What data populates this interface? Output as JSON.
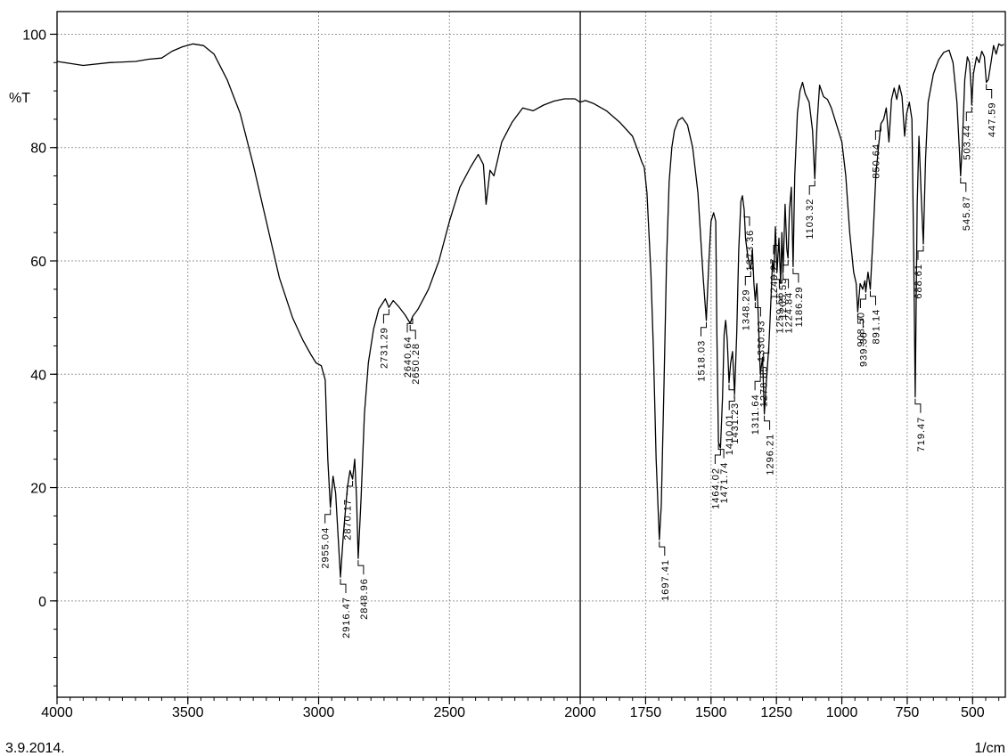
{
  "chart_data": {
    "type": "line",
    "title": "",
    "ylabel": "%T",
    "xlabel": "1/cm",
    "date": "3.9.2014.",
    "xlim": [
      4000,
      375
    ],
    "ylim": [
      -17,
      104
    ],
    "x_reversed": true,
    "grid": true,
    "divider_x": 2000,
    "x_ticks": [
      {
        "value": 4000,
        "label": "4000"
      },
      {
        "value": 3500,
        "label": "3500"
      },
      {
        "value": 3000,
        "label": "3000"
      },
      {
        "value": 2500,
        "label": "2500"
      },
      {
        "value": 2000,
        "label": "2000"
      },
      {
        "value": 1750,
        "label": "1750"
      },
      {
        "value": 1500,
        "label": "1500"
      },
      {
        "value": 1250,
        "label": "1250"
      },
      {
        "value": 1000,
        "label": "1000"
      },
      {
        "value": 750,
        "label": "750"
      },
      {
        "value": 500,
        "label": "500"
      }
    ],
    "y_ticks": [
      {
        "value": 100,
        "label": "100"
      },
      {
        "value": 80,
        "label": "80"
      },
      {
        "value": 60,
        "label": "60"
      },
      {
        "value": 40,
        "label": "40"
      },
      {
        "value": 20,
        "label": "20"
      },
      {
        "value": 0,
        "label": "0"
      }
    ],
    "series": [
      {
        "color": "#000000",
        "points": [
          [
            4000,
            95.2
          ],
          [
            3900,
            94.5
          ],
          [
            3800,
            95.0
          ],
          [
            3700,
            95.2
          ],
          [
            3650,
            95.6
          ],
          [
            3600,
            95.8
          ],
          [
            3560,
            97.0
          ],
          [
            3520,
            97.8
          ],
          [
            3480,
            98.3
          ],
          [
            3440,
            98.0
          ],
          [
            3400,
            96.5
          ],
          [
            3350,
            92
          ],
          [
            3300,
            86
          ],
          [
            3250,
            77
          ],
          [
            3200,
            67
          ],
          [
            3150,
            57
          ],
          [
            3100,
            50
          ],
          [
            3060,
            46
          ],
          [
            3030,
            43.5
          ],
          [
            3010,
            42
          ],
          [
            2990,
            41.5
          ],
          [
            2975,
            39
          ],
          [
            2965,
            25
          ],
          [
            2955.04,
            16.5
          ],
          [
            2945,
            22
          ],
          [
            2935,
            19
          ],
          [
            2916.47,
            4.2
          ],
          [
            2905,
            12
          ],
          [
            2890,
            20
          ],
          [
            2880,
            23
          ],
          [
            2870.17,
            21.5
          ],
          [
            2862,
            25
          ],
          [
            2855,
            18
          ],
          [
            2848.96,
            7.5
          ],
          [
            2838,
            18
          ],
          [
            2825,
            33
          ],
          [
            2810,
            42
          ],
          [
            2790,
            48
          ],
          [
            2770,
            51.5
          ],
          [
            2745,
            53.3
          ],
          [
            2731.29,
            51.8
          ],
          [
            2715,
            53
          ],
          [
            2695,
            52
          ],
          [
            2670,
            50.5
          ],
          [
            2650.28,
            49
          ],
          [
            2640.64,
            50.2
          ],
          [
            2620,
            51.5
          ],
          [
            2580,
            55
          ],
          [
            2540,
            60
          ],
          [
            2500,
            67
          ],
          [
            2460,
            73
          ],
          [
            2420,
            76.5
          ],
          [
            2390,
            78.8
          ],
          [
            2370,
            77
          ],
          [
            2360,
            70
          ],
          [
            2345,
            76
          ],
          [
            2330,
            75
          ],
          [
            2300,
            81
          ],
          [
            2260,
            84.5
          ],
          [
            2220,
            87
          ],
          [
            2180,
            86.5
          ],
          [
            2140,
            87.5
          ],
          [
            2100,
            88.2
          ],
          [
            2060,
            88.6
          ],
          [
            2020,
            88.6
          ],
          [
            2000,
            88
          ],
          [
            1980,
            88.3
          ],
          [
            1950,
            87.8
          ],
          [
            1900,
            86.5
          ],
          [
            1850,
            84.5
          ],
          [
            1800,
            82
          ],
          [
            1780,
            79.5
          ],
          [
            1765,
            77.5
          ],
          [
            1755,
            76.5
          ],
          [
            1745,
            72
          ],
          [
            1730,
            58
          ],
          [
            1720,
            44
          ],
          [
            1710,
            25
          ],
          [
            1697.41,
            10.8
          ],
          [
            1690,
            17
          ],
          [
            1680,
            38
          ],
          [
            1670,
            60
          ],
          [
            1660,
            74
          ],
          [
            1650,
            80
          ],
          [
            1640,
            83
          ],
          [
            1625,
            84.8
          ],
          [
            1610,
            85.3
          ],
          [
            1590,
            84
          ],
          [
            1570,
            80
          ],
          [
            1550,
            72
          ],
          [
            1530,
            57
          ],
          [
            1518.03,
            49.5
          ],
          [
            1508,
            60
          ],
          [
            1500,
            67
          ],
          [
            1490,
            68.5
          ],
          [
            1482,
            67
          ],
          [
            1478,
            48
          ],
          [
            1471.74,
            28
          ],
          [
            1464.02,
            27
          ],
          [
            1456,
            36
          ],
          [
            1450,
            47
          ],
          [
            1444,
            49.5
          ],
          [
            1438,
            46
          ],
          [
            1431.23,
            38.5
          ],
          [
            1425,
            42
          ],
          [
            1418,
            44
          ],
          [
            1410.01,
            36.5
          ],
          [
            1402,
            47
          ],
          [
            1394,
            62
          ],
          [
            1386,
            70.5
          ],
          [
            1380,
            71.5
          ],
          [
            1373.36,
            69
          ],
          [
            1368,
            64
          ],
          [
            1360,
            61
          ],
          [
            1352,
            59
          ],
          [
            1348.29,
            58.5
          ],
          [
            1342,
            62
          ],
          [
            1336,
            56
          ],
          [
            1330.93,
            53
          ],
          [
            1325,
            56
          ],
          [
            1320,
            51
          ],
          [
            1311.64,
            40
          ],
          [
            1303,
            43
          ],
          [
            1296.21,
            33
          ],
          [
            1288,
            39
          ],
          [
            1278.85,
            45
          ],
          [
            1272,
            52
          ],
          [
            1265,
            60
          ],
          [
            1259.56,
            58
          ],
          [
            1254,
            66
          ],
          [
            1248,
            58
          ],
          [
            1240.27,
            64
          ],
          [
            1234,
            56
          ],
          [
            1229,
            65
          ],
          [
            1224.84,
            58
          ],
          [
            1217,
            70
          ],
          [
            1210,
            62
          ],
          [
            1205.55,
            60.5
          ],
          [
            1200,
            69
          ],
          [
            1193,
            73
          ],
          [
            1186.29,
            59
          ],
          [
            1180,
            75
          ],
          [
            1170,
            86
          ],
          [
            1160,
            90
          ],
          [
            1150,
            91.5
          ],
          [
            1140,
            89.5
          ],
          [
            1125,
            88
          ],
          [
            1112,
            83
          ],
          [
            1103.32,
            74.5
          ],
          [
            1095,
            84
          ],
          [
            1085,
            91
          ],
          [
            1070,
            89
          ],
          [
            1055,
            88.5
          ],
          [
            1040,
            87
          ],
          [
            1020,
            84
          ],
          [
            1000,
            81
          ],
          [
            985,
            75
          ],
          [
            970,
            65
          ],
          [
            955,
            58
          ],
          [
            945,
            56
          ],
          [
            939.36,
            51
          ],
          [
            930,
            56
          ],
          [
            920,
            55
          ],
          [
            912,
            56.5
          ],
          [
            908.5,
            54.5
          ],
          [
            900,
            58
          ],
          [
            891.14,
            55
          ],
          [
            880,
            65
          ],
          [
            870,
            75
          ],
          [
            860,
            80
          ],
          [
            850.64,
            84.2
          ],
          [
            840,
            85
          ],
          [
            830,
            87
          ],
          [
            820,
            81
          ],
          [
            810,
            88.5
          ],
          [
            800,
            90.5
          ],
          [
            790,
            88.5
          ],
          [
            780,
            91
          ],
          [
            770,
            89
          ],
          [
            760,
            82
          ],
          [
            752,
            86
          ],
          [
            742,
            88
          ],
          [
            732,
            85
          ],
          [
            725,
            60
          ],
          [
            719.47,
            36
          ],
          [
            712,
            70
          ],
          [
            705,
            82
          ],
          [
            697,
            72
          ],
          [
            688.61,
            63
          ],
          [
            680,
            78
          ],
          [
            670,
            88
          ],
          [
            650,
            93
          ],
          [
            630,
            95.5
          ],
          [
            610,
            96.8
          ],
          [
            590,
            97.2
          ],
          [
            575,
            95
          ],
          [
            560,
            88
          ],
          [
            550,
            79
          ],
          [
            545.87,
            75
          ],
          [
            540,
            80
          ],
          [
            530,
            92
          ],
          [
            520,
            96
          ],
          [
            512,
            95
          ],
          [
            505,
            90
          ],
          [
            503.44,
            87.5
          ],
          [
            497,
            93
          ],
          [
            485,
            96
          ],
          [
            475,
            95
          ],
          [
            465,
            97
          ],
          [
            455,
            96
          ],
          [
            447.59,
            91.5
          ],
          [
            440,
            92
          ],
          [
            430,
            95
          ],
          [
            420,
            98
          ],
          [
            410,
            96.5
          ],
          [
            400,
            98.3
          ],
          [
            390,
            98
          ],
          [
            380,
            98.2
          ]
        ]
      }
    ],
    "annotations": [
      {
        "label": "2955.04",
        "x": 2955.04,
        "y": 16.5,
        "pos": "below"
      },
      {
        "label": "2916.47",
        "x": 2916.47,
        "y": 4.2,
        "pos": "below"
      },
      {
        "label": "2870.17",
        "x": 2870.17,
        "y": 21.5,
        "pos": "below"
      },
      {
        "label": "2848.96",
        "x": 2848.96,
        "y": 7.5,
        "pos": "below"
      },
      {
        "label": "2731.29",
        "x": 2731.29,
        "y": 51.8,
        "pos": "below"
      },
      {
        "label": "2650.28",
        "x": 2650.28,
        "y": 49,
        "pos": "below"
      },
      {
        "label": "2640.64",
        "x": 2640.64,
        "y": 50.2,
        "pos": "below"
      },
      {
        "label": "1697.41",
        "x": 1697.41,
        "y": 10.8,
        "pos": "below"
      },
      {
        "label": "1518.03",
        "x": 1518.03,
        "y": 49.5,
        "pos": "below"
      },
      {
        "label": "1471.74",
        "x": 1471.74,
        "y": 28,
        "pos": "below"
      },
      {
        "label": "1464.02",
        "x": 1464.02,
        "y": 27,
        "pos": "below"
      },
      {
        "label": "1431.23",
        "x": 1431.23,
        "y": 38.5,
        "pos": "below"
      },
      {
        "label": "1410.01",
        "x": 1410.01,
        "y": 36.5,
        "pos": "below"
      },
      {
        "label": "1373.36",
        "x": 1373.36,
        "y": 69,
        "pos": "below"
      },
      {
        "label": "1348.29",
        "x": 1348.29,
        "y": 58.5,
        "pos": "below"
      },
      {
        "label": "1330.93",
        "x": 1330.93,
        "y": 53,
        "pos": "below"
      },
      {
        "label": "1311.64",
        "x": 1311.64,
        "y": 40,
        "pos": "below"
      },
      {
        "label": "1296.21",
        "x": 1296.21,
        "y": 33,
        "pos": "below"
      },
      {
        "label": "1278.85",
        "x": 1278.85,
        "y": 45,
        "pos": "below"
      },
      {
        "label": "1259.56",
        "x": 1259.56,
        "y": 58,
        "pos": "below"
      },
      {
        "label": "1240.27",
        "x": 1240.27,
        "y": 64,
        "pos": "below"
      },
      {
        "label": "1224.84",
        "x": 1224.84,
        "y": 58,
        "pos": "below"
      },
      {
        "label": "1205.55",
        "x": 1205.55,
        "y": 60.5,
        "pos": "below"
      },
      {
        "label": "1186.29",
        "x": 1186.29,
        "y": 59,
        "pos": "below"
      },
      {
        "label": "1103.32",
        "x": 1103.32,
        "y": 74.5,
        "pos": "below"
      },
      {
        "label": "939.36",
        "x": 939.36,
        "y": 51,
        "pos": "below"
      },
      {
        "label": "908.50",
        "x": 908.5,
        "y": 54.5,
        "pos": "below"
      },
      {
        "label": "891.14",
        "x": 891.14,
        "y": 55,
        "pos": "below"
      },
      {
        "label": "850.64",
        "x": 850.64,
        "y": 84.2,
        "pos": "below"
      },
      {
        "label": "719.47",
        "x": 719.47,
        "y": 36,
        "pos": "below"
      },
      {
        "label": "688.61",
        "x": 688.61,
        "y": 63,
        "pos": "below"
      },
      {
        "label": "545.87",
        "x": 545.87,
        "y": 75,
        "pos": "below"
      },
      {
        "label": "503.44",
        "x": 503.44,
        "y": 87.5,
        "pos": "below"
      },
      {
        "label": "447.59",
        "x": 447.59,
        "y": 91.5,
        "pos": "below"
      }
    ]
  }
}
